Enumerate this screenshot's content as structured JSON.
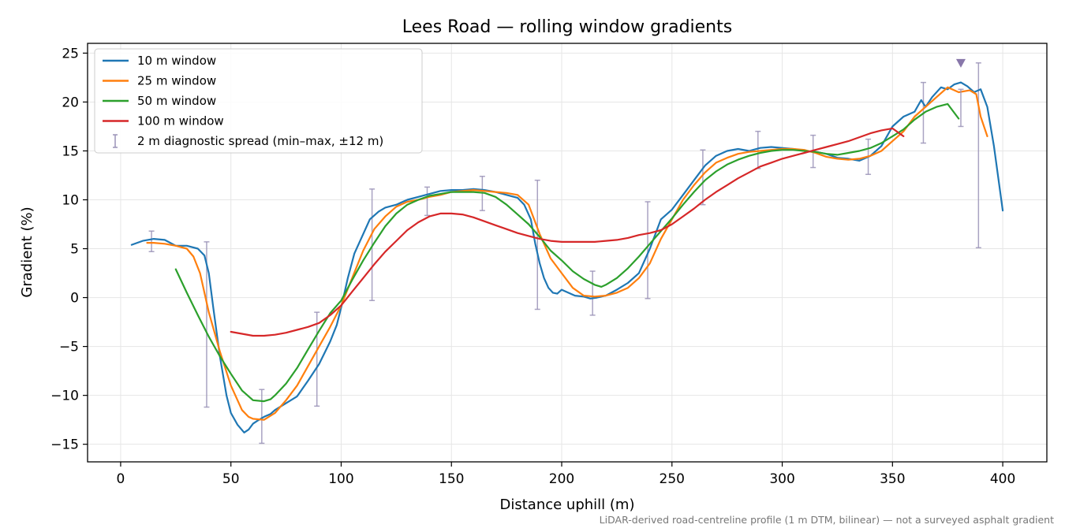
{
  "chart_data": {
    "type": "line",
    "title": "Lees Road — rolling window gradients",
    "xlabel": "Distance uphill (m)",
    "ylabel": "Gradient (%)",
    "note": "LiDAR-derived road-centreline profile (1 m DTM, bilinear) — not a surveyed asphalt gradient",
    "xlim": [
      -15,
      420
    ],
    "ylim": [
      -16.8,
      26
    ],
    "xticks": [
      0,
      50,
      100,
      150,
      200,
      250,
      300,
      350,
      400
    ],
    "yticks": [
      -15,
      -10,
      -5,
      0,
      5,
      10,
      15,
      20,
      25
    ],
    "grid": true,
    "legend_position": "top-left",
    "series": [
      {
        "name": "10 m window",
        "color": "#1f77b4",
        "x": [
          5,
          10,
          15,
          20,
          25,
          30,
          35,
          38,
          40,
          42,
          45,
          48,
          50,
          53,
          56,
          58,
          60,
          62,
          65,
          68,
          70,
          75,
          80,
          85,
          90,
          95,
          98,
          100,
          103,
          106,
          110,
          113,
          117,
          120,
          125,
          130,
          135,
          140,
          145,
          150,
          155,
          160,
          165,
          170,
          175,
          180,
          183,
          186,
          188,
          190,
          192,
          194,
          196,
          198,
          200,
          203,
          206,
          210,
          213,
          216,
          220,
          225,
          230,
          235,
          240,
          245,
          250,
          255,
          260,
          265,
          270,
          275,
          280,
          285,
          290,
          295,
          300,
          305,
          310,
          315,
          320,
          325,
          330,
          335,
          340,
          345,
          350,
          355,
          360,
          363,
          365,
          368,
          372,
          375,
          378,
          381,
          384,
          387,
          390,
          393,
          396,
          400
        ],
        "y": [
          5.4,
          5.8,
          6.0,
          5.9,
          5.3,
          5.3,
          5.0,
          4.3,
          2.5,
          -1.0,
          -6.0,
          -10.0,
          -11.8,
          -13.0,
          -13.8,
          -13.5,
          -12.9,
          -12.6,
          -12.2,
          -11.9,
          -11.5,
          -10.8,
          -10.1,
          -8.5,
          -6.8,
          -4.5,
          -2.8,
          -1.0,
          2.0,
          4.5,
          6.5,
          8.0,
          8.8,
          9.2,
          9.5,
          10.0,
          10.3,
          10.6,
          10.9,
          11.0,
          11.0,
          11.1,
          11.0,
          10.8,
          10.5,
          10.2,
          9.5,
          8.0,
          5.5,
          3.5,
          2.0,
          1.0,
          0.5,
          0.4,
          0.8,
          0.5,
          0.2,
          0.1,
          -0.1,
          0.0,
          0.2,
          0.8,
          1.5,
          2.5,
          5.0,
          8.0,
          9.0,
          10.5,
          12.0,
          13.5,
          14.5,
          15.0,
          15.2,
          15.0,
          15.3,
          15.4,
          15.3,
          15.2,
          15.0,
          14.9,
          14.7,
          14.3,
          14.2,
          14.0,
          14.5,
          15.5,
          17.5,
          18.5,
          19.0,
          20.2,
          19.5,
          20.5,
          21.5,
          21.3,
          21.8,
          22.0,
          21.6,
          21.0,
          21.3,
          19.5,
          15.5,
          8.9
        ]
      },
      {
        "name": "25 m window",
        "color": "#ff7f0e",
        "x": [
          12,
          15,
          20,
          25,
          30,
          33,
          36,
          40,
          45,
          50,
          55,
          58,
          60,
          65,
          70,
          75,
          80,
          85,
          90,
          95,
          100,
          105,
          110,
          115,
          120,
          125,
          130,
          135,
          140,
          145,
          150,
          155,
          160,
          165,
          170,
          175,
          180,
          185,
          190,
          195,
          200,
          205,
          210,
          215,
          220,
          225,
          230,
          235,
          240,
          245,
          250,
          255,
          260,
          265,
          270,
          275,
          280,
          285,
          290,
          295,
          300,
          305,
          310,
          315,
          320,
          325,
          330,
          335,
          340,
          345,
          350,
          355,
          360,
          365,
          370,
          375,
          380,
          385,
          388,
          390,
          393
        ],
        "y": [
          5.6,
          5.6,
          5.5,
          5.3,
          5.0,
          4.2,
          2.5,
          -1.5,
          -5.5,
          -9.0,
          -11.5,
          -12.2,
          -12.4,
          -12.5,
          -11.8,
          -10.5,
          -9.0,
          -7.0,
          -5.0,
          -3.0,
          -0.8,
          2.0,
          4.8,
          7.0,
          8.3,
          9.3,
          9.8,
          10.0,
          10.3,
          10.5,
          10.8,
          10.9,
          11.0,
          10.9,
          10.8,
          10.7,
          10.5,
          9.5,
          6.5,
          4.0,
          2.5,
          1.0,
          0.2,
          0.1,
          0.2,
          0.5,
          1.0,
          2.0,
          3.5,
          6.0,
          8.0,
          10.0,
          11.5,
          12.8,
          13.8,
          14.3,
          14.7,
          14.9,
          15.0,
          15.1,
          15.2,
          15.2,
          15.1,
          14.8,
          14.4,
          14.2,
          14.1,
          14.2,
          14.5,
          15.0,
          16.0,
          17.0,
          18.5,
          19.5,
          20.5,
          21.5,
          21.0,
          21.2,
          20.8,
          18.5,
          16.5
        ]
      },
      {
        "name": "50 m window",
        "color": "#2ca02c",
        "x": [
          25,
          30,
          35,
          40,
          45,
          50,
          55,
          60,
          65,
          68,
          70,
          75,
          80,
          85,
          90,
          95,
          100,
          105,
          110,
          115,
          120,
          125,
          130,
          135,
          140,
          145,
          150,
          155,
          160,
          165,
          170,
          175,
          180,
          185,
          190,
          195,
          200,
          205,
          210,
          215,
          218,
          220,
          225,
          230,
          235,
          240,
          245,
          250,
          255,
          260,
          265,
          270,
          275,
          280,
          285,
          290,
          295,
          300,
          305,
          310,
          315,
          320,
          325,
          330,
          335,
          340,
          345,
          350,
          355,
          360,
          365,
          370,
          375,
          380
        ],
        "y": [
          2.9,
          0.5,
          -1.8,
          -4.0,
          -6.0,
          -7.8,
          -9.5,
          -10.5,
          -10.6,
          -10.4,
          -10.0,
          -8.8,
          -7.2,
          -5.3,
          -3.4,
          -1.6,
          -0.3,
          1.8,
          3.8,
          5.6,
          7.3,
          8.6,
          9.5,
          10.0,
          10.4,
          10.6,
          10.8,
          10.8,
          10.8,
          10.7,
          10.3,
          9.5,
          8.5,
          7.5,
          6.2,
          4.8,
          3.8,
          2.7,
          1.9,
          1.3,
          1.1,
          1.3,
          2.0,
          3.0,
          4.2,
          5.5,
          6.8,
          8.1,
          9.5,
          10.8,
          12.0,
          12.9,
          13.6,
          14.1,
          14.5,
          14.8,
          15.0,
          15.1,
          15.1,
          15.0,
          14.9,
          14.7,
          14.6,
          14.8,
          15.0,
          15.3,
          15.8,
          16.5,
          17.2,
          18.2,
          19.0,
          19.5,
          19.8,
          18.3
        ]
      },
      {
        "name": "100 m window",
        "color": "#d62728",
        "x": [
          50,
          55,
          60,
          65,
          70,
          75,
          80,
          85,
          90,
          95,
          100,
          105,
          110,
          115,
          120,
          125,
          130,
          135,
          140,
          145,
          150,
          155,
          160,
          165,
          170,
          175,
          180,
          185,
          190,
          195,
          200,
          205,
          210,
          215,
          220,
          225,
          230,
          235,
          240,
          245,
          250,
          255,
          260,
          265,
          270,
          275,
          280,
          285,
          290,
          295,
          300,
          305,
          310,
          315,
          320,
          325,
          330,
          335,
          340,
          345,
          350,
          355
        ],
        "y": [
          -3.5,
          -3.7,
          -3.9,
          -3.9,
          -3.8,
          -3.6,
          -3.3,
          -3.0,
          -2.6,
          -1.8,
          -0.8,
          0.6,
          2.0,
          3.4,
          4.7,
          5.8,
          6.9,
          7.7,
          8.3,
          8.6,
          8.6,
          8.5,
          8.2,
          7.8,
          7.4,
          7.0,
          6.6,
          6.3,
          6.0,
          5.8,
          5.7,
          5.7,
          5.7,
          5.7,
          5.8,
          5.9,
          6.1,
          6.4,
          6.6,
          6.9,
          7.5,
          8.3,
          9.1,
          10.0,
          10.8,
          11.5,
          12.2,
          12.8,
          13.4,
          13.8,
          14.2,
          14.5,
          14.8,
          15.1,
          15.4,
          15.7,
          16.0,
          16.4,
          16.8,
          17.1,
          17.3,
          16.5
        ]
      }
    ],
    "error_bars": {
      "name": "2 m diagnostic spread (min–max, ±12 m)",
      "color": "#9b93b8",
      "points": [
        {
          "x": 14,
          "min": 4.7,
          "max": 6.8
        },
        {
          "x": 39,
          "min": -11.2,
          "max": 5.7
        },
        {
          "x": 64,
          "min": -14.9,
          "max": -9.4
        },
        {
          "x": 89,
          "min": -11.1,
          "max": -1.5
        },
        {
          "x": 114,
          "min": -0.3,
          "max": 11.1
        },
        {
          "x": 139,
          "min": 8.4,
          "max": 11.3
        },
        {
          "x": 164,
          "min": 8.9,
          "max": 12.4
        },
        {
          "x": 189,
          "min": -1.2,
          "max": 12.0
        },
        {
          "x": 214,
          "min": -1.8,
          "max": 2.7
        },
        {
          "x": 239,
          "min": -0.1,
          "max": 9.8
        },
        {
          "x": 264,
          "min": 9.5,
          "max": 15.1
        },
        {
          "x": 289,
          "min": 13.2,
          "max": 17.0
        },
        {
          "x": 314,
          "min": 13.3,
          "max": 16.6
        },
        {
          "x": 339,
          "min": 12.6,
          "max": 16.2
        },
        {
          "x": 364,
          "min": 15.8,
          "max": 22.0
        },
        {
          "x": 389,
          "min": 5.1,
          "max": 24.0
        }
      ]
    },
    "peak_marker": {
      "x": 381,
      "y": 24,
      "color": "#8877aa",
      "bar_min": 17.5,
      "bar_max": 21.3
    }
  }
}
